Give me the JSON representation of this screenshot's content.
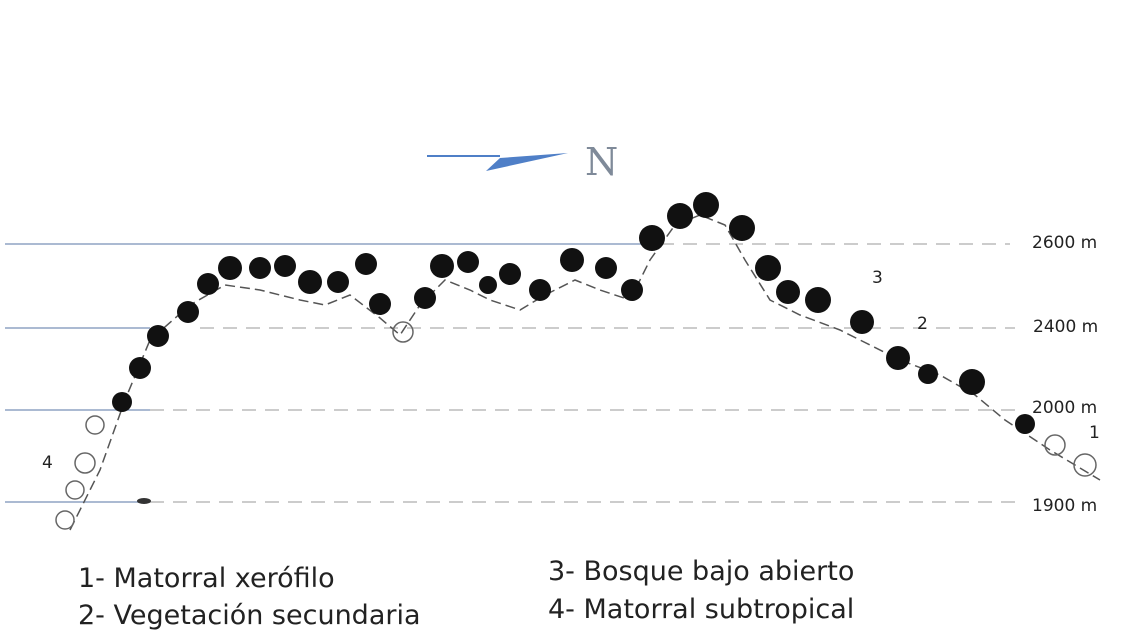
{
  "north_label": "N",
  "elevations": [
    "2600 m",
    "2400 m",
    "2000 m",
    "1900 m"
  ],
  "zone_numbers": [
    "1",
    "2",
    "3",
    "4"
  ],
  "legend": [
    "1- Matorral xerófilo",
    "2- Vegetación secundaria",
    "3- Bosque bajo abierto",
    "4- Matorral subtropical"
  ],
  "colors": {
    "contour_line": "#8fa4c4",
    "arrow": "#4f7fc7",
    "tree_dark": "#111111",
    "profile_line": "#555555"
  }
}
